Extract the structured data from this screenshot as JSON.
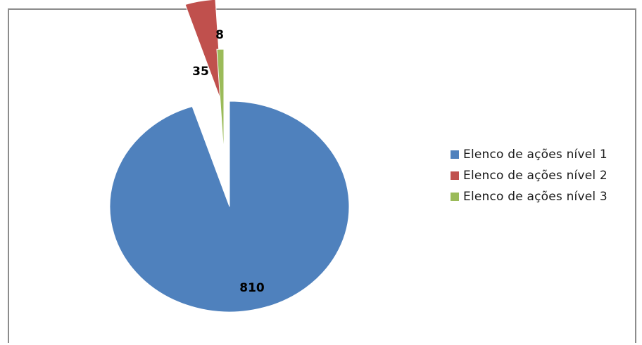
{
  "chart_data": {
    "type": "pie",
    "slices": [
      {
        "label": "Elenco de ações nível 1",
        "value": 810,
        "color": "#4f81bd",
        "data_label": "810"
      },
      {
        "label": "Elenco de ações nível 2",
        "value": 35,
        "color": "#c0504d",
        "data_label": "35"
      },
      {
        "label": "Elenco de ações nível 3",
        "value": 8,
        "color": "#9bbb59",
        "data_label": "8"
      }
    ],
    "legend_position": "right",
    "exploded": true
  }
}
